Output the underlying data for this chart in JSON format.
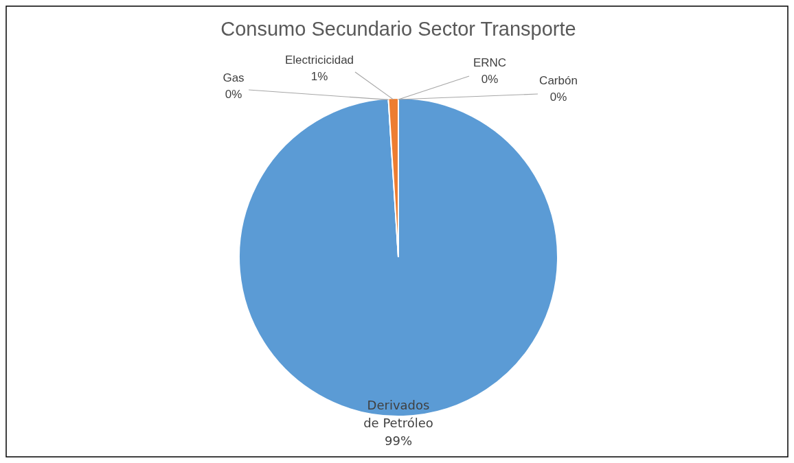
{
  "chart_data": {
    "type": "pie",
    "title": "Consumo Secundario Sector Transporte",
    "categories": [
      "ERNC",
      "Carbón",
      "Derivados de Petróleo",
      "Gas",
      "Electricicidad"
    ],
    "values": [
      0,
      0,
      99,
      0,
      1
    ],
    "colors": [
      "#4472c4",
      "#ffc000",
      "#5b9bd5",
      "#a5a5a5",
      "#ed7d31"
    ],
    "value_labels": [
      "0%",
      "0%",
      "99%",
      "0%",
      "1%"
    ]
  }
}
